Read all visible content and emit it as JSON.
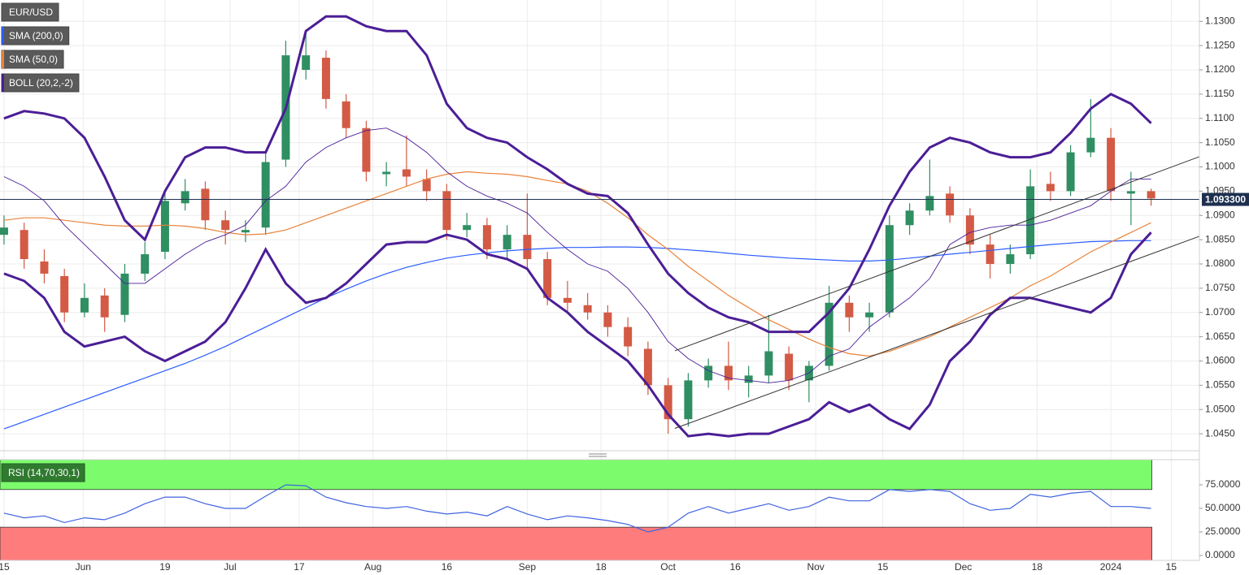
{
  "chart_data": [
    {
      "type": "candlestick",
      "name": "EUR/USD",
      "up_color": "#2f8f62",
      "down_color": "#d35a45",
      "x": [
        0,
        3,
        6,
        9,
        12,
        15,
        18,
        21,
        24,
        27,
        30,
        33,
        36,
        39,
        42,
        45,
        48,
        51,
        54,
        57,
        60,
        63,
        66,
        69,
        72,
        75,
        78,
        81,
        84,
        87,
        90,
        93,
        96,
        99,
        102,
        105,
        108,
        111,
        114,
        117,
        120,
        123,
        126,
        129,
        132,
        135,
        138,
        141,
        144,
        147,
        150,
        153,
        156,
        159,
        162,
        165,
        168,
        171
      ],
      "open": [
        1.086,
        1.087,
        1.0805,
        1.0775,
        1.07,
        1.0735,
        1.0695,
        1.078,
        1.0825,
        1.0925,
        1.0955,
        1.089,
        1.0865,
        1.0875,
        1.1015,
        1.12,
        1.1225,
        1.1135,
        1.108,
        1.0985,
        1.0995,
        1.0975,
        1.095,
        1.087,
        1.088,
        1.083,
        1.086,
        1.081,
        1.073,
        1.0715,
        1.07,
        1.067,
        1.0625,
        1.055,
        1.048,
        1.056,
        1.059,
        1.0555,
        1.057,
        1.0615,
        1.056,
        1.059,
        1.072,
        1.069,
        1.07,
        1.088,
        1.091,
        1.0945,
        1.09,
        1.084,
        1.08,
        1.082,
        1.0965,
        1.095,
        1.103,
        1.106,
        1.0945,
        1.095
      ],
      "high": [
        1.09,
        1.0885,
        1.083,
        1.079,
        1.076,
        1.075,
        1.08,
        1.0845,
        1.095,
        1.0975,
        1.097,
        1.091,
        1.089,
        1.103,
        1.126,
        1.1275,
        1.124,
        1.115,
        1.1095,
        1.101,
        1.1065,
        1.0995,
        1.0965,
        1.0905,
        1.0895,
        1.088,
        1.0945,
        1.0825,
        1.0765,
        1.074,
        1.0715,
        1.069,
        1.064,
        1.0565,
        1.0575,
        1.0605,
        1.064,
        1.059,
        1.0695,
        1.063,
        1.06,
        1.0755,
        1.0735,
        1.072,
        1.09,
        1.0925,
        1.1015,
        1.096,
        1.0915,
        1.086,
        1.084,
        1.0995,
        1.099,
        1.1045,
        1.114,
        1.108,
        1.099,
        1.0955
      ],
      "low": [
        1.084,
        1.079,
        1.076,
        1.068,
        1.069,
        1.066,
        1.068,
        1.0765,
        1.081,
        1.091,
        1.087,
        1.084,
        1.0845,
        1.086,
        1.1,
        1.118,
        1.112,
        1.106,
        1.097,
        1.096,
        1.096,
        1.093,
        1.085,
        1.0855,
        1.081,
        1.081,
        1.079,
        1.0715,
        1.07,
        1.0685,
        1.065,
        1.061,
        1.053,
        1.045,
        1.0465,
        1.0545,
        1.054,
        1.0525,
        1.0555,
        1.054,
        1.0515,
        1.058,
        1.066,
        1.066,
        1.069,
        1.086,
        1.09,
        1.0885,
        1.082,
        1.077,
        1.078,
        1.081,
        1.093,
        1.094,
        1.102,
        1.093,
        1.088,
        1.092
      ],
      "close": [
        1.0875,
        1.081,
        1.078,
        1.07,
        1.073,
        1.069,
        1.078,
        1.082,
        1.093,
        1.095,
        1.089,
        1.087,
        1.087,
        1.101,
        1.123,
        1.123,
        1.114,
        1.108,
        1.099,
        1.099,
        1.098,
        1.095,
        1.087,
        1.088,
        1.083,
        1.086,
        1.081,
        1.073,
        1.072,
        1.07,
        1.067,
        1.063,
        1.055,
        1.048,
        1.056,
        1.059,
        1.056,
        1.057,
        1.062,
        1.056,
        1.059,
        1.072,
        1.069,
        1.07,
        1.088,
        1.091,
        1.094,
        1.09,
        1.084,
        1.08,
        1.082,
        1.096,
        1.095,
        1.103,
        1.106,
        1.095,
        1.095,
        1.0935
      ],
      "series": [
        {
          "name": "SMA (200,0)",
          "color": "#2b5cff",
          "values": [
            1.046,
            1.0475,
            1.049,
            1.0505,
            1.052,
            1.0535,
            1.055,
            1.0565,
            1.058,
            1.0595,
            1.0612,
            1.063,
            1.065,
            1.067,
            1.069,
            1.071,
            1.073,
            1.0748,
            1.0765,
            1.078,
            1.0793,
            1.0803,
            1.0812,
            1.0818,
            1.0823,
            1.0827,
            1.083,
            1.0832,
            1.0834,
            1.0834,
            1.0835,
            1.0835,
            1.0834,
            1.0832,
            1.0829,
            1.0826,
            1.0822,
            1.0818,
            1.0815,
            1.0812,
            1.081,
            1.0808,
            1.0806,
            1.0806,
            1.0808,
            1.0812,
            1.0816,
            1.082,
            1.0824,
            1.0828,
            1.0832,
            1.0836,
            1.084,
            1.0843,
            1.0846,
            1.0847,
            1.0848,
            1.0848
          ]
        },
        {
          "name": "SMA (50,0)",
          "color": "#e8823a",
          "values": [
            1.089,
            1.0895,
            1.0895,
            1.089,
            1.0885,
            1.088,
            1.0878,
            1.0878,
            1.088,
            1.0878,
            1.0873,
            1.0865,
            1.086,
            1.0862,
            1.087,
            1.0885,
            1.09,
            1.0915,
            1.093,
            1.0945,
            1.096,
            1.0975,
            1.0985,
            1.099,
            1.0987,
            1.0985,
            1.098,
            1.0972,
            1.0965,
            1.095,
            1.0925,
            1.0895,
            1.086,
            1.083,
            1.0795,
            1.0765,
            1.0735,
            1.071,
            1.0685,
            1.0665,
            1.0645,
            1.0628,
            1.0615,
            1.061,
            1.062,
            1.0635,
            1.065,
            1.067,
            1.069,
            1.071,
            1.073,
            1.0755,
            1.0775,
            1.08,
            1.0825,
            1.0845,
            1.0865,
            1.0885
          ]
        },
        {
          "name": "BOLL (20,2,-2)",
          "color": "#4b1e96",
          "upper": [
            1.11,
            1.1115,
            1.111,
            1.11,
            1.106,
            1.098,
            1.089,
            1.085,
            1.095,
            1.102,
            1.104,
            1.104,
            1.103,
            1.103,
            1.112,
            1.128,
            1.131,
            1.131,
            1.129,
            1.128,
            1.128,
            1.123,
            1.113,
            1.108,
            1.106,
            1.105,
            1.102,
            1.0995,
            1.0965,
            1.0945,
            1.094,
            1.0905,
            1.084,
            1.078,
            1.074,
            1.071,
            1.069,
            1.068,
            1.066,
            1.066,
            1.066,
            1.07,
            1.075,
            1.083,
            1.092,
            1.099,
            1.104,
            1.106,
            1.105,
            1.103,
            1.102,
            1.102,
            1.103,
            1.107,
            1.112,
            1.115,
            1.113,
            1.109
          ],
          "middle": [
            1.098,
            1.096,
            1.093,
            1.088,
            1.084,
            1.08,
            1.076,
            1.076,
            1.079,
            1.082,
            1.0845,
            1.086,
            1.088,
            1.093,
            1.096,
            1.101,
            1.104,
            1.106,
            1.1075,
            1.108,
            1.106,
            1.103,
            1.099,
            1.096,
            1.094,
            1.0925,
            1.0905,
            1.0865,
            1.083,
            1.08,
            1.0785,
            1.075,
            1.07,
            1.064,
            1.0605,
            1.058,
            1.0565,
            1.056,
            1.0555,
            1.056,
            1.0575,
            1.061,
            1.0625,
            1.067,
            1.07,
            1.073,
            1.077,
            1.084,
            1.0865,
            1.0875,
            1.088,
            1.088,
            1.089,
            1.0905,
            1.092,
            1.095,
            1.0975,
            1.0975
          ],
          "lower": [
            1.078,
            1.0765,
            1.073,
            1.066,
            1.063,
            1.064,
            1.065,
            1.062,
            1.06,
            1.062,
            1.064,
            1.068,
            1.075,
            1.083,
            1.076,
            1.072,
            1.073,
            1.076,
            1.08,
            1.084,
            1.0845,
            1.0845,
            1.086,
            1.085,
            1.082,
            1.081,
            1.079,
            1.073,
            1.07,
            1.066,
            1.063,
            1.06,
            1.055,
            1.049,
            1.0445,
            1.045,
            1.0445,
            1.045,
            1.045,
            1.0465,
            1.048,
            1.0515,
            1.0495,
            1.051,
            1.048,
            1.046,
            1.051,
            1.06,
            1.064,
            1.0695,
            1.073,
            1.073,
            1.072,
            1.071,
            1.07,
            1.073,
            1.082,
            1.0865
          ]
        }
      ],
      "trendlines": [
        {
          "x": [
            100,
            178.2
          ],
          "y": [
            1.0621,
            1.1021
          ]
        },
        {
          "x": [
            100,
            178.2
          ],
          "y": [
            1.0461,
            1.0857
          ]
        }
      ],
      "last_price": {
        "value": 1.0933,
        "label": "1.093300"
      },
      "xlim": [
        -0.6,
        178.2
      ],
      "xticks": [
        {
          "value": 0,
          "label": "15"
        },
        {
          "value": 11.8,
          "label": "Jun"
        },
        {
          "value": 24,
          "label": "19"
        },
        {
          "value": 33.7,
          "label": "Jul"
        },
        {
          "value": 44,
          "label": "17"
        },
        {
          "value": 55,
          "label": "Aug"
        },
        {
          "value": 66,
          "label": "16"
        },
        {
          "value": 78,
          "label": "Sep"
        },
        {
          "value": 89,
          "label": "18"
        },
        {
          "value": 99,
          "label": "Oct"
        },
        {
          "value": 109,
          "label": "16"
        },
        {
          "value": 121,
          "label": "Nov"
        },
        {
          "value": 131,
          "label": "15"
        },
        {
          "value": 143,
          "label": "Dec"
        },
        {
          "value": 154,
          "label": "18"
        },
        {
          "value": 165,
          "label": "2024"
        },
        {
          "value": 174,
          "label": "15"
        }
      ],
      "ylim": [
        1.0415,
        1.1344
      ],
      "yticks": [
        {
          "value": 1.045,
          "label": "1.0450"
        },
        {
          "value": 1.05,
          "label": "1.0500"
        },
        {
          "value": 1.055,
          "label": "1.0550"
        },
        {
          "value": 1.06,
          "label": "1.0600"
        },
        {
          "value": 1.065,
          "label": "1.0650"
        },
        {
          "value": 1.07,
          "label": "1.0700"
        },
        {
          "value": 1.075,
          "label": "1.0750"
        },
        {
          "value": 1.08,
          "label": "1.0800"
        },
        {
          "value": 1.085,
          "label": "1.0850"
        },
        {
          "value": 1.09,
          "label": "1.0900"
        },
        {
          "value": 1.095,
          "label": "1.0950"
        },
        {
          "value": 1.1,
          "label": "1.1000"
        },
        {
          "value": 1.105,
          "label": "1.1050"
        },
        {
          "value": 1.11,
          "label": "1.1100"
        },
        {
          "value": 1.115,
          "label": "1.1150"
        },
        {
          "value": 1.12,
          "label": "1.1200"
        },
        {
          "value": 1.125,
          "label": "1.1250"
        },
        {
          "value": 1.13,
          "label": "1.1300"
        }
      ],
      "grid": true
    },
    {
      "type": "line",
      "name": "RSI (14,70,30,1)",
      "color": "#3f63e0",
      "overbought": 70,
      "oversold": 30,
      "overbought_color": "#7cfc6c",
      "oversold_color": "#ff7c7c",
      "x": [
        0,
        3,
        6,
        9,
        12,
        15,
        18,
        21,
        24,
        27,
        30,
        33,
        36,
        39,
        42,
        45,
        48,
        51,
        54,
        57,
        60,
        63,
        66,
        69,
        72,
        75,
        78,
        81,
        84,
        87,
        90,
        93,
        96,
        99,
        102,
        105,
        108,
        111,
        114,
        117,
        120,
        123,
        126,
        129,
        132,
        135,
        138,
        141,
        144,
        147,
        150,
        153,
        156,
        159,
        162,
        165,
        168,
        171
      ],
      "values": [
        45,
        40,
        42,
        35,
        40,
        38,
        45,
        55,
        62,
        62,
        55,
        50,
        50,
        63,
        75,
        74,
        62,
        56,
        52,
        50,
        52,
        47,
        44,
        46,
        42,
        52,
        44,
        38,
        42,
        40,
        37,
        33,
        25,
        30,
        45,
        52,
        45,
        50,
        55,
        48,
        52,
        62,
        58,
        58,
        70,
        68,
        70,
        68,
        55,
        48,
        50,
        65,
        62,
        66,
        68,
        52,
        52,
        50
      ],
      "xlim": [
        -0.6,
        178.2
      ],
      "ylim": [
        -5.2,
        101.7
      ],
      "yticks": [
        {
          "value": 0,
          "label": "0.0000"
        },
        {
          "value": 25,
          "label": "25.0000"
        },
        {
          "value": 50,
          "label": "50.0000"
        },
        {
          "value": 75,
          "label": "75.0000"
        }
      ]
    }
  ]
}
